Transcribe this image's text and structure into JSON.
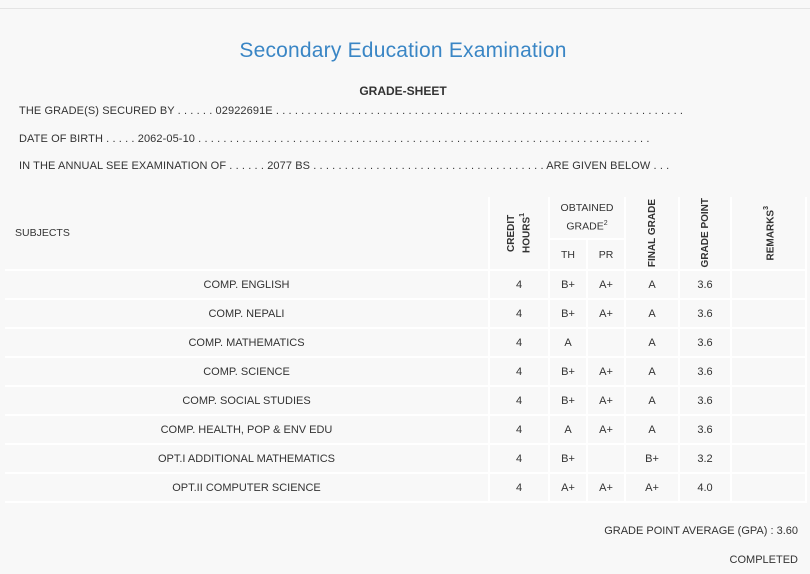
{
  "header": {
    "title": "Secondary Education Examination",
    "subtitle": "GRADE-SHEET"
  },
  "info": {
    "secured_by_prefix": "THE GRADE(S) SECURED BY . . . . . .",
    "symbol_no": "02922691E",
    "secured_by_suffix": ". . . . . . . . . . . . . . . . . . . . . . . . . . . . . . . . . . . . . . . . . . . . . . . . . . . . . . . . . . . . . . . . .",
    "dob_prefix": "DATE OF BIRTH . . . . .",
    "dob": "2062-05-10",
    "dob_suffix": ". . . . . . . . . . . . . . . . . . . . . . . . . . . . . . . . . . . . . . . . . . . . . . . . . . . . . . . . . . . . . . . . . . . . . . . .",
    "exam_prefix": "IN THE ANNUAL SEE EXAMINATION OF . . . . . .",
    "exam_year": "2077 BS",
    "exam_suffix": ". . . . . . . . . . . . . . . . . . . . . . . . . . . . . . . . . . . . . ARE GIVEN BELOW . . ."
  },
  "table": {
    "col_subjects": "SUBJECTS",
    "col_credit": "CREDIT HOURS",
    "col_credit_sup": "1",
    "col_obtained": "OBTAINED GRADE",
    "col_obtained_sup": "2",
    "col_th": "TH",
    "col_pr": "PR",
    "col_final": "FINAL GRADE",
    "col_gp": "GRADE POINT",
    "col_remarks": "REMARKS",
    "col_remarks_sup": "3",
    "rows": [
      {
        "subject": "COMP. ENGLISH",
        "credit": "4",
        "th": "B+",
        "pr": "A+",
        "final": "A",
        "gp": "3.6",
        "remarks": ""
      },
      {
        "subject": "COMP. NEPALI",
        "credit": "4",
        "th": "B+",
        "pr": "A+",
        "final": "A",
        "gp": "3.6",
        "remarks": ""
      },
      {
        "subject": "COMP. MATHEMATICS",
        "credit": "4",
        "th": "A",
        "pr": "",
        "final": "A",
        "gp": "3.6",
        "remarks": ""
      },
      {
        "subject": "COMP. SCIENCE",
        "credit": "4",
        "th": "B+",
        "pr": "A+",
        "final": "A",
        "gp": "3.6",
        "remarks": ""
      },
      {
        "subject": "COMP. SOCIAL STUDIES",
        "credit": "4",
        "th": "B+",
        "pr": "A+",
        "final": "A",
        "gp": "3.6",
        "remarks": ""
      },
      {
        "subject": "COMP. HEALTH, POP & ENV EDU",
        "credit": "4",
        "th": "A",
        "pr": "A+",
        "final": "A",
        "gp": "3.6",
        "remarks": ""
      },
      {
        "subject": "OPT.I ADDITIONAL MATHEMATICS",
        "credit": "4",
        "th": "B+",
        "pr": "",
        "final": "B+",
        "gp": "3.2",
        "remarks": ""
      },
      {
        "subject": "OPT.II COMPUTER SCIENCE",
        "credit": "4",
        "th": "A+",
        "pr": "A+",
        "final": "A+",
        "gp": "4.0",
        "remarks": ""
      }
    ]
  },
  "summary": {
    "gpa_text": "GRADE POINT AVERAGE (GPA) : 3.60",
    "status": "COMPLETED"
  }
}
